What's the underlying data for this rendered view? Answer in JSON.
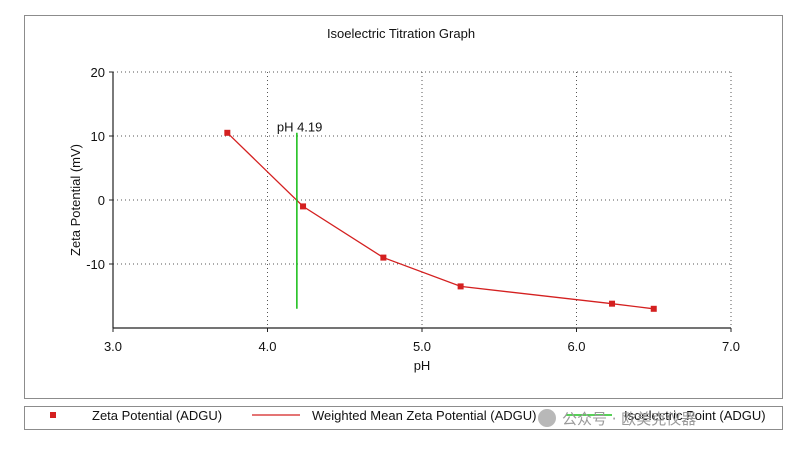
{
  "chart_data": {
    "type": "line",
    "title": "Isoelectric Titration Graph",
    "xlabel": "pH",
    "ylabel": "Zeta Potential (mV)",
    "xlim": [
      3.0,
      7.0
    ],
    "ylim": [
      -20,
      20
    ],
    "x_ticks": [
      "3.0",
      "4.0",
      "5.0",
      "6.0",
      "7.0"
    ],
    "y_ticks": [
      "20",
      "10",
      "0",
      "-10"
    ],
    "grid": true,
    "legend_position": "bottom",
    "series": [
      {
        "name": "Zeta Potential (ADGU)",
        "style": "markers",
        "color": "#d42020",
        "x": [
          3.74,
          4.23,
          4.75,
          5.25,
          6.23,
          6.5
        ],
        "y": [
          10.5,
          -1.0,
          -9.0,
          -13.5,
          -16.2,
          -17.0
        ]
      },
      {
        "name": "Weighted Mean Zeta Potential (ADGU)",
        "style": "line",
        "color": "#d42020",
        "x": [
          3.74,
          4.23,
          4.75,
          5.25,
          6.23,
          6.5
        ],
        "y": [
          10.5,
          -1.0,
          -9.0,
          -13.5,
          -16.2,
          -17.0
        ]
      },
      {
        "name": "Isoelectric Point (ADGU)",
        "style": "vertical-line",
        "color": "#22c022",
        "x": 4.19,
        "y_range": [
          -17,
          10.5
        ]
      }
    ],
    "annotations": [
      {
        "text": "pH 4.19",
        "x": 4.19,
        "y": 11.5
      }
    ]
  },
  "watermark": "公众号 · 欧美克仪器"
}
